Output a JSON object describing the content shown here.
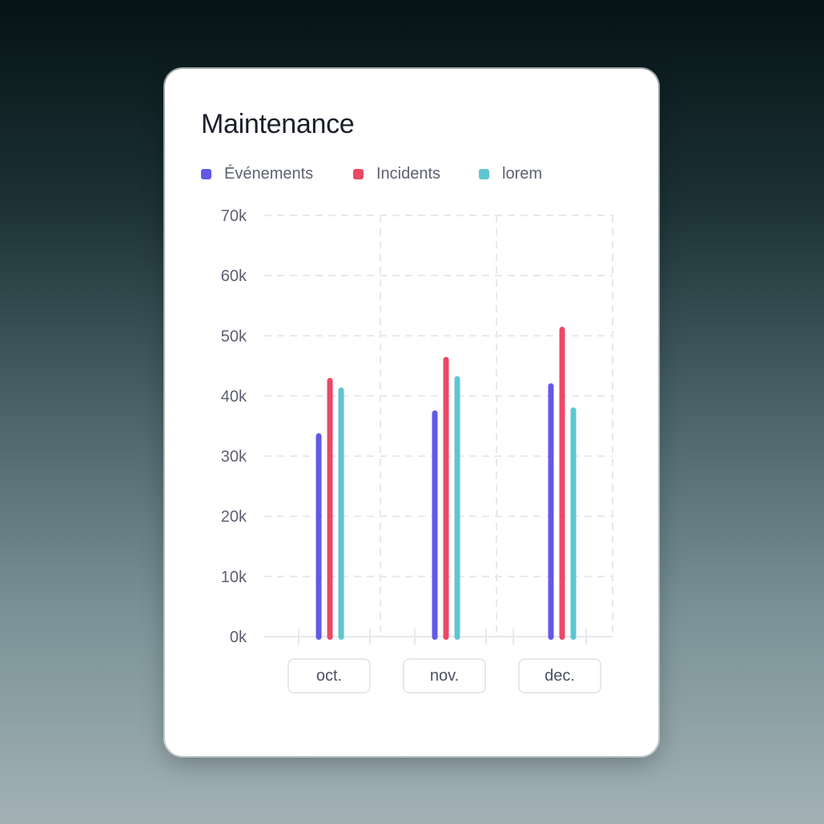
{
  "card": {
    "title": "Maintenance"
  },
  "colors": {
    "evenements": "#6359e9",
    "incidents": "#ec4867",
    "lorem": "#5ec6d1",
    "grid": "#e6e8ec",
    "axis_text": "#5d6170"
  },
  "chart_data": {
    "type": "bar",
    "title": "Maintenance",
    "categories": [
      "oct.",
      "nov.",
      "dec."
    ],
    "series": [
      {
        "name": "Événements",
        "color": "#6359e9",
        "values": [
          33800,
          37600,
          42100
        ]
      },
      {
        "name": "Incidents",
        "color": "#ec4867",
        "values": [
          43000,
          46500,
          51500
        ]
      },
      {
        "name": "lorem",
        "color": "#5ec6d1",
        "values": [
          41400,
          43300,
          38100
        ]
      }
    ],
    "yticks": [
      "0k",
      "10k",
      "20k",
      "30k",
      "40k",
      "50k",
      "60k",
      "70k"
    ],
    "ylim": [
      0,
      70000
    ],
    "grid": true,
    "legend_position": "top-left"
  }
}
